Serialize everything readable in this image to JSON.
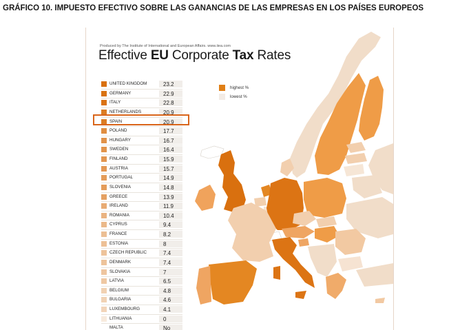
{
  "figure_title": "GRÁFICO 10. IMPUESTO EFECTIVO SOBRE LAS GANANCIAS DE LAS EMPRESAS EN LOS PAÍSES EUROPEOS",
  "producer_note": "Produced by The Institute of International and European Affairs. www.iiea.com",
  "headline": {
    "part1": "Effective ",
    "bold1": "EU",
    "part2": " Corporate ",
    "bold2": "Tax",
    "part3": " Rates"
  },
  "legend": {
    "highest": "highest %",
    "lowest": "lowest %",
    "highest_color": "#e07f16",
    "lowest_color": "#f3ece6"
  },
  "highlight_color": "#d9651a",
  "chart_data": {
    "type": "table",
    "title": "Effective EU Corporate Tax Rates",
    "unit": "%",
    "highlighted": "SPAIN",
    "rows": [
      {
        "country": "UNITED KINGDOM",
        "value": "23.2"
      },
      {
        "country": "GERMANY",
        "value": "22.9"
      },
      {
        "country": "ITALY",
        "value": "22.8"
      },
      {
        "country": "NETHERLANDS",
        "value": "20.9"
      },
      {
        "country": "SPAIN",
        "value": "20.9"
      },
      {
        "country": "POLAND",
        "value": "17.7"
      },
      {
        "country": "HUNGARY",
        "value": "16.7"
      },
      {
        "country": "SWEDEN",
        "value": "16.4"
      },
      {
        "country": "FINLAND",
        "value": "15.9"
      },
      {
        "country": "AUSTRIA",
        "value": "15.7"
      },
      {
        "country": "PORTUGAL",
        "value": "14.9"
      },
      {
        "country": "SLOVENIA",
        "value": "14.8"
      },
      {
        "country": "GREECE",
        "value": "13.9"
      },
      {
        "country": "IRELAND",
        "value": "11.9"
      },
      {
        "country": "ROMANIA",
        "value": "10.4"
      },
      {
        "country": "CYPRUS",
        "value": "9.4"
      },
      {
        "country": "FRANCE",
        "value": "8.2"
      },
      {
        "country": "ESTONIA",
        "value": "8"
      },
      {
        "country": "CZECH REPUBLIC",
        "value": "7.4"
      },
      {
        "country": "DENMARK",
        "value": "7.4"
      },
      {
        "country": "SLOVAKIA",
        "value": "7"
      },
      {
        "country": "LATVIA",
        "value": "6.5"
      },
      {
        "country": "BELGIUM",
        "value": "4.8"
      },
      {
        "country": "BULGARIA",
        "value": "4.6"
      },
      {
        "country": "LUXEMBOURG",
        "value": "4.1"
      },
      {
        "country": "LITHUANIA",
        "value": "0"
      },
      {
        "country": "MALTA",
        "value": "No data"
      }
    ]
  }
}
